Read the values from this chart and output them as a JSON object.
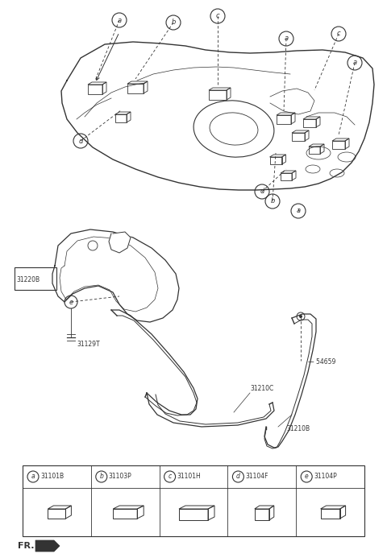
{
  "bg_color": "#ffffff",
  "line_color": "#333333",
  "parts_table": {
    "items": [
      {
        "letter": "a",
        "code": "31101B"
      },
      {
        "letter": "b",
        "code": "31103P"
      },
      {
        "letter": "c",
        "code": "31101H"
      },
      {
        "letter": "d",
        "code": "31104F"
      },
      {
        "letter": "e",
        "code": "31104P"
      }
    ]
  }
}
